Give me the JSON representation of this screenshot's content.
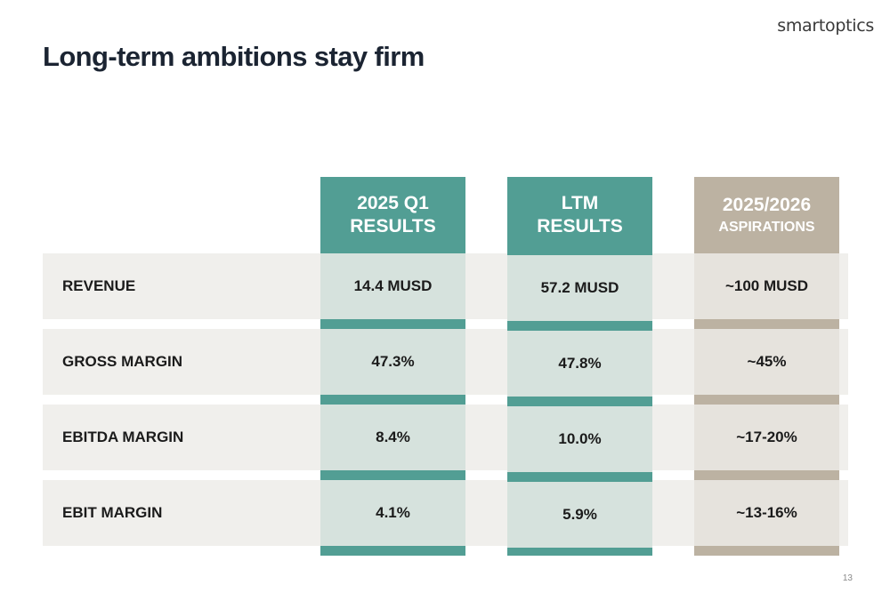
{
  "brand": {
    "logo_text": "smartoptics"
  },
  "slide": {
    "title": "Long-term ambitions stay firm",
    "page_number": "13"
  },
  "columns": [
    {
      "line1": "2025 Q1",
      "line2": "RESULTS"
    },
    {
      "line1": "LTM",
      "line2": "RESULTS"
    },
    {
      "line1": "2025/2026",
      "line2": "ASPIRATIONS"
    }
  ],
  "rows": [
    {
      "label": "REVENUE",
      "values": [
        "14.4 MUSD",
        "57.2 MUSD",
        "~100 MUSD"
      ]
    },
    {
      "label": "GROSS MARGIN",
      "values": [
        "47.3%",
        "47.8%",
        "~45%"
      ]
    },
    {
      "label": "EBITDA MARGIN",
      "values": [
        "8.4%",
        "10.0%",
        "~17-20%"
      ]
    },
    {
      "label": "EBIT MARGIN",
      "values": [
        "4.1%",
        "5.9%",
        "~13-16%"
      ]
    }
  ],
  "colors": {
    "teal": "#529e94",
    "teal_light": "#d6e2dd",
    "tan": "#bcb2a2",
    "tan_light": "#e6e3dd",
    "row_band": "#f0efec",
    "title": "#1b2432"
  }
}
